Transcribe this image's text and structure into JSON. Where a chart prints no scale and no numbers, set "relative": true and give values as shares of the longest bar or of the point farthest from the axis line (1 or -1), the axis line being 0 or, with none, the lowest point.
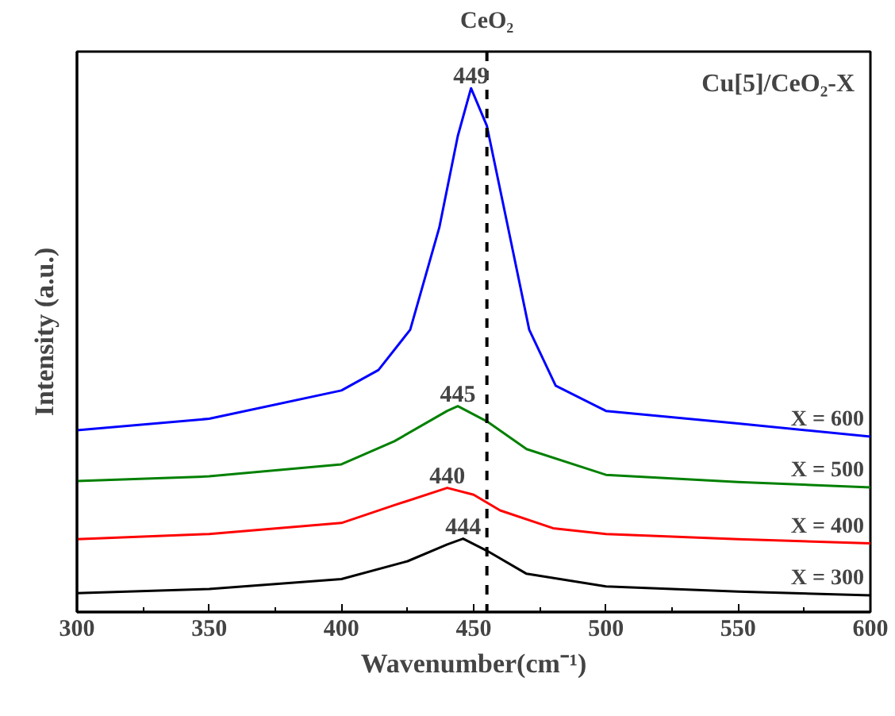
{
  "chart_data": {
    "type": "line",
    "relative": true,
    "xlabel": "Wavenumber(cm⁻¹)",
    "ylabel": "Intensity (a.u.)",
    "xlim": [
      300,
      600
    ],
    "xticks": [
      300,
      350,
      400,
      450,
      500,
      550,
      600
    ],
    "tick_labels": "x",
    "grid": false,
    "line_style": "solid",
    "marker": "none",
    "series": [
      {
        "name": "X = 300",
        "color": "#000000",
        "x": [
          300,
          350,
          400,
          425,
          440,
          446,
          455,
          470,
          500,
          550,
          600
        ],
        "values": [
          0.036,
          0.044,
          0.063,
          0.097,
          0.129,
          0.14,
          0.117,
          0.073,
          0.049,
          0.039,
          0.032
        ]
      },
      {
        "name": "X = 400",
        "color": "#ff0000",
        "x": [
          300,
          350,
          400,
          420,
          440,
          450,
          460,
          480,
          500,
          550,
          600
        ],
        "values": [
          0.139,
          0.149,
          0.17,
          0.204,
          0.237,
          0.224,
          0.194,
          0.16,
          0.149,
          0.139,
          0.131
        ]
      },
      {
        "name": "X = 500",
        "color": "#008000",
        "x": [
          300,
          350,
          400,
          420,
          440,
          444,
          455,
          470,
          500,
          550,
          600
        ],
        "values": [
          0.25,
          0.259,
          0.282,
          0.326,
          0.384,
          0.393,
          0.364,
          0.311,
          0.262,
          0.248,
          0.238
        ]
      },
      {
        "name": "X = 600",
        "color": "#0000ff",
        "x": [
          300,
          350,
          400,
          414,
          426,
          437,
          444,
          449,
          455,
          463,
          471,
          481,
          500,
          550,
          600
        ],
        "values": [
          0.347,
          0.369,
          0.423,
          0.462,
          0.539,
          0.734,
          0.909,
          1,
          0.928,
          0.734,
          0.539,
          0.432,
          0.384,
          0.36,
          0.335
        ]
      }
    ],
    "ref_lines": [
      {
        "axis": "x",
        "value": 455,
        "label": "CeO₂",
        "color": "#000000",
        "line_style": "dashed"
      }
    ],
    "annotations": [
      {
        "text": "444",
        "x": 446,
        "y": 0.14
      },
      {
        "text": "440",
        "x": 440,
        "y": 0.237
      },
      {
        "text": "445",
        "x": 444,
        "y": 0.393
      },
      {
        "text": "449",
        "x": 449,
        "y": 1
      },
      "Cu[5]/CeO₂-X"
    ]
  }
}
